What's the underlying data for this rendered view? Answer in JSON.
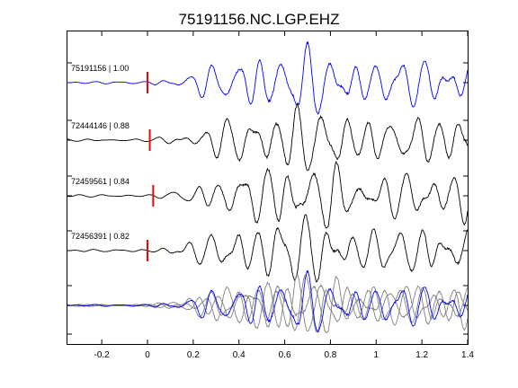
{
  "chart_data": {
    "type": "line",
    "title": "75191156.NC.LGP.EHZ",
    "xlabel": "",
    "ylabel": "",
    "xlim": [
      -0.35,
      1.4
    ],
    "x_ticks": [
      -0.2,
      0,
      0.2,
      0.4,
      0.6,
      0.8,
      1,
      1.2,
      1.4
    ],
    "x_tick_labels": [
      "-0.2",
      "0",
      "0.2",
      "0.4",
      "0.6",
      "0.8",
      "1",
      "1.2",
      "1.4"
    ],
    "grid": false,
    "colors": {
      "reference": "#0000ff",
      "trace": "#000000",
      "overlay_trace": "#808080",
      "pick": "#ff0000"
    },
    "traces": [
      {
        "label": "75191156 | 1.00",
        "pick_time": 0.0,
        "color": "#0000ff"
      },
      {
        "label": "72444146 | 0.88",
        "pick_time": 0.01,
        "color": "#000000"
      },
      {
        "label": "72459561 | 0.84",
        "pick_time": 0.025,
        "color": "#000000"
      },
      {
        "label": "72456391 | 0.82",
        "pick_time": 0.0,
        "color": "#000000"
      }
    ],
    "stack": {
      "label": "",
      "reference_color": "#0000ff",
      "others_color": "#808080"
    }
  }
}
